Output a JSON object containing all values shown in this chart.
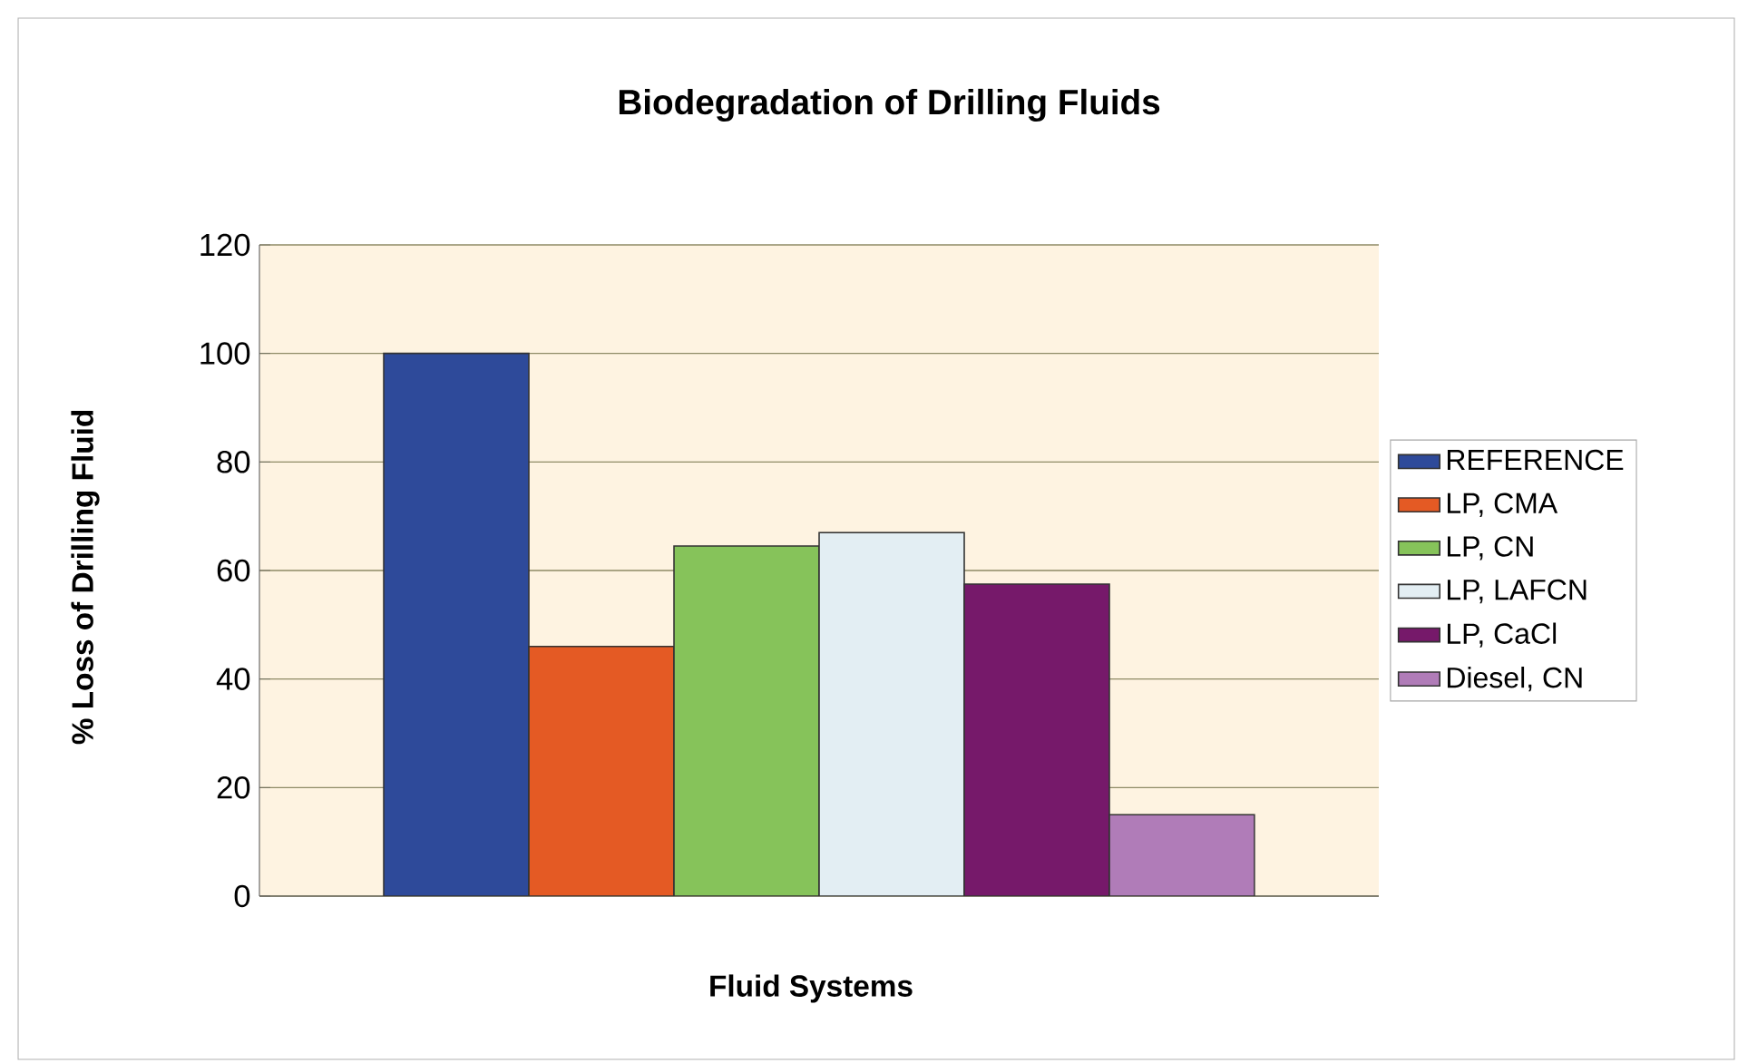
{
  "chart_data": {
    "type": "bar",
    "title": "Biodegradation of Drilling Fluids",
    "xlabel": "Fluid Systems",
    "ylabel": "% Loss of Drilling Fluid",
    "categories": [
      null
    ],
    "series": [
      {
        "name": "REFERENCE",
        "color": "#2e4a9a",
        "values": [
          100
        ]
      },
      {
        "name": "LP, CMA",
        "color": "#e45a24",
        "values": [
          46
        ]
      },
      {
        "name": "LP, CN",
        "color": "#86c35a",
        "values": [
          64.5
        ]
      },
      {
        "name": "LP, LAFCN",
        "color": "#e3eef3",
        "values": [
          67
        ]
      },
      {
        "name": "LP, CaCl",
        "color": "#76196a",
        "values": [
          57.5
        ]
      },
      {
        "name": "Diesel, CN",
        "color": "#b07cb8",
        "values": [
          15
        ]
      }
    ],
    "ylim": [
      0,
      120
    ],
    "yticks": [
      0,
      20,
      40,
      60,
      80,
      100,
      120
    ],
    "grid": "y",
    "legend": "right"
  }
}
